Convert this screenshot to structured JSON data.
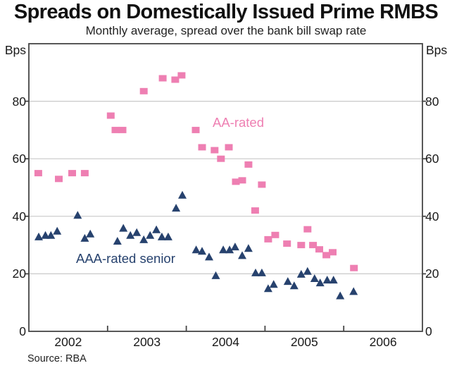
{
  "title": "Spreads on Domestically Issued Prime RMBS",
  "subtitle": "Monthly average, spread over the bank bill swap rate",
  "source": "Source: RBA",
  "axes": {
    "y_unit_left": "Bps",
    "y_unit_right": "Bps",
    "y_ticks": [
      0,
      20,
      40,
      60,
      80
    ],
    "x_year_labels": [
      2002,
      2003,
      2004,
      2005,
      2006
    ],
    "x_boundary_ticks": [
      2003,
      2004,
      2005,
      2006
    ],
    "ylim": [
      0,
      100
    ],
    "xlim": [
      2002,
      2007
    ],
    "grid": "horizontal-only"
  },
  "series_labels": {
    "aa": "AA-rated",
    "aaa": "AAA-rated senior"
  },
  "colors": {
    "aa": "#ee7fb2",
    "aaa": "#27426e",
    "grid": "#c9c9c9",
    "frame": "#454545",
    "text": "#1a1a1a"
  },
  "chart_data": {
    "type": "scatter",
    "title": "Spreads on Domestically Issued Prime RMBS",
    "subtitle": "Monthly average, spread over the bank bill swap rate",
    "xlabel": "",
    "ylabel": "Bps",
    "xlim": [
      2002,
      2007
    ],
    "ylim": [
      0,
      100
    ],
    "legend_position": "in-plot-annotations",
    "series": [
      {
        "name": "AA-rated",
        "marker": "square",
        "color": "#ee7fb2",
        "points": [
          [
            2002.12,
            55
          ],
          [
            2002.38,
            53
          ],
          [
            2002.55,
            55
          ],
          [
            2002.71,
            55
          ],
          [
            2003.04,
            75
          ],
          [
            2003.1,
            70
          ],
          [
            2003.19,
            70
          ],
          [
            2003.46,
            83.5
          ],
          [
            2003.7,
            88
          ],
          [
            2003.86,
            87.5
          ],
          [
            2003.94,
            89
          ],
          [
            2004.12,
            70
          ],
          [
            2004.2,
            64
          ],
          [
            2004.36,
            63
          ],
          [
            2004.44,
            60
          ],
          [
            2004.54,
            64
          ],
          [
            2004.63,
            52
          ],
          [
            2004.71,
            52.5
          ],
          [
            2004.79,
            58
          ],
          [
            2004.875,
            42
          ],
          [
            2004.96,
            51
          ],
          [
            2005.04,
            32
          ],
          [
            2005.13,
            33.5
          ],
          [
            2005.28,
            30.5
          ],
          [
            2005.46,
            30
          ],
          [
            2005.54,
            35.5
          ],
          [
            2005.61,
            30
          ],
          [
            2005.69,
            28.5
          ],
          [
            2005.78,
            26.5
          ],
          [
            2005.86,
            27.5
          ],
          [
            2006.13,
            22
          ]
        ]
      },
      {
        "name": "AAA-rated senior",
        "marker": "triangle",
        "color": "#27426e",
        "points": [
          [
            2002.125,
            33
          ],
          [
            2002.21,
            33.5
          ],
          [
            2002.28,
            33.5
          ],
          [
            2002.36,
            35
          ],
          [
            2002.62,
            40.5
          ],
          [
            2002.71,
            32.5
          ],
          [
            2002.78,
            34
          ],
          [
            2003.125,
            31.5
          ],
          [
            2003.2,
            36
          ],
          [
            2003.29,
            33.5
          ],
          [
            2003.37,
            34.5
          ],
          [
            2003.46,
            32
          ],
          [
            2003.54,
            33.5
          ],
          [
            2003.62,
            35.5
          ],
          [
            2003.69,
            33
          ],
          [
            2003.77,
            33
          ],
          [
            2003.87,
            43
          ],
          [
            2003.95,
            47.5
          ],
          [
            2004.125,
            28.5
          ],
          [
            2004.2,
            28
          ],
          [
            2004.29,
            26
          ],
          [
            2004.375,
            19.5
          ],
          [
            2004.47,
            28.5
          ],
          [
            2004.55,
            28.5
          ],
          [
            2004.62,
            29.5
          ],
          [
            2004.71,
            26.5
          ],
          [
            2004.79,
            29
          ],
          [
            2004.88,
            20.5
          ],
          [
            2004.96,
            20.5
          ],
          [
            2005.04,
            15
          ],
          [
            2005.11,
            16.5
          ],
          [
            2005.29,
            17.5
          ],
          [
            2005.37,
            16
          ],
          [
            2005.46,
            20
          ],
          [
            2005.54,
            21
          ],
          [
            2005.63,
            18.5
          ],
          [
            2005.7,
            17
          ],
          [
            2005.79,
            18
          ],
          [
            2005.87,
            18
          ],
          [
            2005.955,
            12.5
          ],
          [
            2006.125,
            14
          ]
        ]
      }
    ]
  }
}
